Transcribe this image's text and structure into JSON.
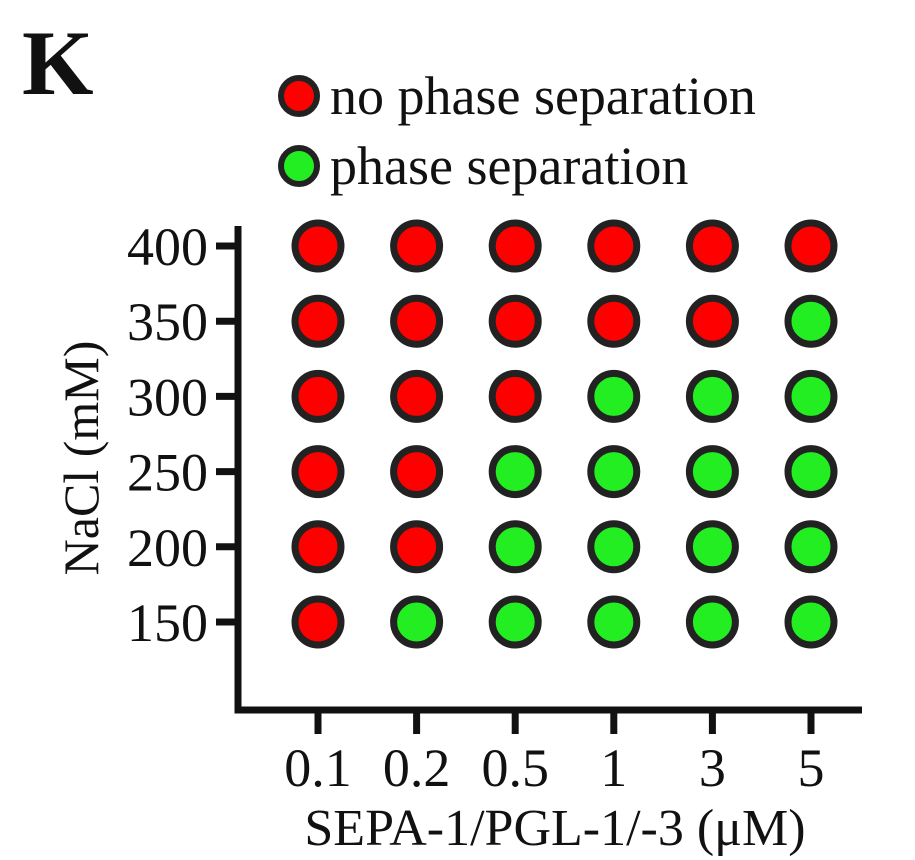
{
  "panel_label": "K",
  "chart_data": {
    "type": "scatter",
    "xlabel": "SEPA-1/PGL-1/-3 (μM)",
    "ylabel": "NaCl (mM)",
    "x_categories": [
      "0.1",
      "0.2",
      "0.5",
      "1",
      "3",
      "5"
    ],
    "y_categories": [
      "150",
      "200",
      "250",
      "300",
      "350",
      "400"
    ],
    "legend": [
      {
        "key": "no",
        "label": "no phase separation",
        "color": "#ff0000"
      },
      {
        "key": "yes",
        "label": "phase separation",
        "color": "#22ee22"
      }
    ],
    "legend_position": "top",
    "grid": false,
    "outline_color": "#222222",
    "points": [
      {
        "x": "0.1",
        "y": "400",
        "phase_separation": false
      },
      {
        "x": "0.2",
        "y": "400",
        "phase_separation": false
      },
      {
        "x": "0.5",
        "y": "400",
        "phase_separation": false
      },
      {
        "x": "1",
        "y": "400",
        "phase_separation": false
      },
      {
        "x": "3",
        "y": "400",
        "phase_separation": false
      },
      {
        "x": "5",
        "y": "400",
        "phase_separation": false
      },
      {
        "x": "0.1",
        "y": "350",
        "phase_separation": false
      },
      {
        "x": "0.2",
        "y": "350",
        "phase_separation": false
      },
      {
        "x": "0.5",
        "y": "350",
        "phase_separation": false
      },
      {
        "x": "1",
        "y": "350",
        "phase_separation": false
      },
      {
        "x": "3",
        "y": "350",
        "phase_separation": false
      },
      {
        "x": "5",
        "y": "350",
        "phase_separation": true
      },
      {
        "x": "0.1",
        "y": "300",
        "phase_separation": false
      },
      {
        "x": "0.2",
        "y": "300",
        "phase_separation": false
      },
      {
        "x": "0.5",
        "y": "300",
        "phase_separation": false
      },
      {
        "x": "1",
        "y": "300",
        "phase_separation": true
      },
      {
        "x": "3",
        "y": "300",
        "phase_separation": true
      },
      {
        "x": "5",
        "y": "300",
        "phase_separation": true
      },
      {
        "x": "0.1",
        "y": "250",
        "phase_separation": false
      },
      {
        "x": "0.2",
        "y": "250",
        "phase_separation": false
      },
      {
        "x": "0.5",
        "y": "250",
        "phase_separation": true
      },
      {
        "x": "1",
        "y": "250",
        "phase_separation": true
      },
      {
        "x": "3",
        "y": "250",
        "phase_separation": true
      },
      {
        "x": "5",
        "y": "250",
        "phase_separation": true
      },
      {
        "x": "0.1",
        "y": "200",
        "phase_separation": false
      },
      {
        "x": "0.2",
        "y": "200",
        "phase_separation": false
      },
      {
        "x": "0.5",
        "y": "200",
        "phase_separation": true
      },
      {
        "x": "1",
        "y": "200",
        "phase_separation": true
      },
      {
        "x": "3",
        "y": "200",
        "phase_separation": true
      },
      {
        "x": "5",
        "y": "200",
        "phase_separation": true
      },
      {
        "x": "0.1",
        "y": "150",
        "phase_separation": false
      },
      {
        "x": "0.2",
        "y": "150",
        "phase_separation": true
      },
      {
        "x": "0.5",
        "y": "150",
        "phase_separation": true
      },
      {
        "x": "1",
        "y": "150",
        "phase_separation": true
      },
      {
        "x": "3",
        "y": "150",
        "phase_separation": true
      },
      {
        "x": "5",
        "y": "150",
        "phase_separation": true
      }
    ]
  }
}
